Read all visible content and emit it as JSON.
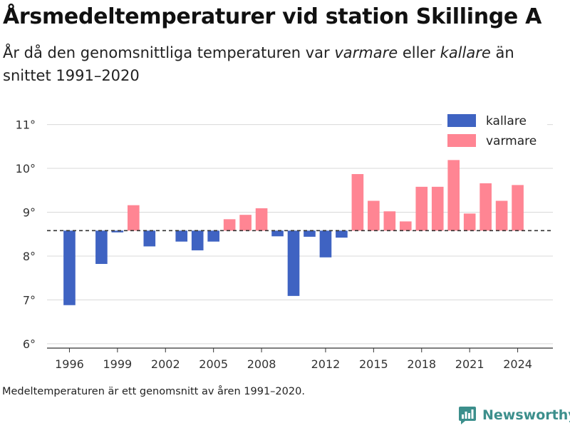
{
  "header": {
    "title": "Årsmedeltemperaturer vid station Skillinge A",
    "subtitle_part1": "År då den genomsnittliga temperaturen var ",
    "subtitle_warm": "varmare",
    "subtitle_part2": " eller ",
    "subtitle_cold": "kallare",
    "subtitle_part3": " än snittet 1991–2020"
  },
  "footnote": "Medeltemperaturen är ett genomsnitt av åren 1991–2020.",
  "brand": {
    "name": "Newsworthy",
    "color": "#3c8f8c",
    "icon": "newsworthy-logo-icon"
  },
  "colors": {
    "kallare": "#3f63c2",
    "varmare": "#ff8593",
    "baseline": "#333333",
    "grid": "#d9d9d9"
  },
  "chart_data": {
    "type": "bar",
    "title": "Årsmedeltemperaturer vid station Skillinge A",
    "baseline": 8.58,
    "ylim": [
      5.9,
      11.4
    ],
    "yticks": [
      6,
      7,
      8,
      9,
      10,
      11
    ],
    "ytick_suffix": "°",
    "xlim": [
      1994.6,
      2026.2
    ],
    "xticks": [
      1996,
      1999,
      2002,
      2005,
      2008,
      2012,
      2015,
      2018,
      2021,
      2024
    ],
    "grid": true,
    "legend": {
      "placement": "top-right",
      "entries": [
        {
          "label": "kallare",
          "color": "#3f63c2"
        },
        {
          "label": "varmare",
          "color": "#ff8593"
        }
      ]
    },
    "series": [
      {
        "years": [
          1996,
          1998,
          1999,
          2000,
          2001,
          2003,
          2004,
          2005,
          2006,
          2007,
          2008,
          2009,
          2010,
          2011,
          2012,
          2013,
          2014,
          2015,
          2016,
          2017,
          2018,
          2019,
          2020,
          2021,
          2022,
          2023,
          2024
        ],
        "values": [
          6.88,
          7.82,
          8.54,
          9.16,
          8.22,
          8.33,
          8.13,
          8.33,
          8.84,
          8.94,
          9.09,
          8.45,
          7.09,
          8.44,
          7.97,
          8.42,
          9.87,
          9.26,
          9.02,
          8.79,
          9.58,
          9.58,
          10.19,
          8.97,
          9.66,
          9.26,
          9.62
        ]
      }
    ]
  }
}
